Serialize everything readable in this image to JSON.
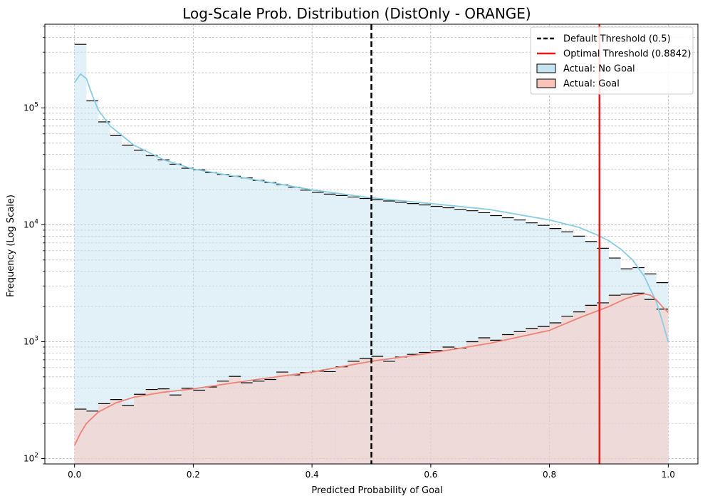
{
  "chart_data": {
    "type": "histogram",
    "title": "Log-Scale Prob. Distribution (DistOnly - ORANGE)",
    "xlabel": "Predicted Probability of Goal",
    "ylabel": "Frequency (Log Scale)",
    "xlim": [
      -0.05,
      1.05
    ],
    "ylim": [
      90,
      520000
    ],
    "yscale": "log",
    "grid": true,
    "legend_position": "top-right",
    "x_ticks": [
      {
        "value": 0.0,
        "label": "0.0"
      },
      {
        "value": 0.2,
        "label": "0.2"
      },
      {
        "value": 0.4,
        "label": "0.4"
      },
      {
        "value": 0.6,
        "label": "0.6"
      },
      {
        "value": 0.8,
        "label": "0.8"
      },
      {
        "value": 1.0,
        "label": "1.0"
      }
    ],
    "y_ticks": [
      {
        "value": 100,
        "base": "10",
        "exp": "2"
      },
      {
        "value": 1000,
        "base": "10",
        "exp": "3"
      },
      {
        "value": 10000,
        "base": "10",
        "exp": "4"
      },
      {
        "value": 100000,
        "base": "10",
        "exp": "5"
      }
    ],
    "bins": {
      "start": 0.0,
      "width": 0.02
    },
    "series": [
      {
        "name": "Actual: No Goal",
        "fill": "#c5e4f1",
        "edge": "#000000",
        "kde_color": "#87cde4",
        "values": [
          350000,
          115000,
          76000,
          58000,
          48000,
          43500,
          39000,
          36000,
          33000,
          30500,
          29500,
          28000,
          27000,
          26000,
          25200,
          24000,
          23000,
          22000,
          21000,
          19800,
          19000,
          18300,
          17800,
          17300,
          16800,
          16400,
          16000,
          15600,
          15200,
          14800,
          14400,
          14000,
          13600,
          13200,
          12700,
          12000,
          11500,
          11000,
          10400,
          9900,
          9300,
          8700,
          8000,
          7200,
          6300,
          5200,
          4200,
          4300,
          3800,
          3200,
          1800
        ]
      },
      {
        "name": "Actual: Goal",
        "fill": "#f9c3b9",
        "edge": "#000000",
        "kde_color": "#ef8272",
        "values": [
          265,
          255,
          295,
          320,
          285,
          355,
          390,
          395,
          350,
          400,
          385,
          410,
          460,
          505,
          445,
          460,
          475,
          550,
          520,
          545,
          560,
          555,
          610,
          680,
          720,
          750,
          680,
          740,
          780,
          810,
          840,
          900,
          880,
          1000,
          1080,
          1030,
          1150,
          1220,
          1300,
          1350,
          1450,
          1650,
          1800,
          2050,
          2150,
          2500,
          2550,
          2600,
          2300,
          1900,
          1800
        ]
      }
    ],
    "kde": [
      {
        "series": "Actual: No Goal",
        "x": [
          0.0,
          0.01,
          0.02,
          0.03,
          0.04,
          0.06,
          0.08,
          0.1,
          0.15,
          0.2,
          0.3,
          0.4,
          0.5,
          0.6,
          0.7,
          0.8,
          0.85,
          0.88,
          0.9,
          0.92,
          0.94,
          0.96,
          0.97,
          0.98,
          0.99,
          1.0
        ],
        "y": [
          165000,
          195000,
          178000,
          128000,
          96000,
          70000,
          58000,
          48000,
          36000,
          30000,
          24500,
          19900,
          17000,
          15200,
          13500,
          11000,
          9500,
          8200,
          7300,
          6200,
          5000,
          3600,
          2800,
          2200,
          1500,
          1000
        ]
      },
      {
        "series": "Actual: Goal",
        "x": [
          0.0,
          0.01,
          0.02,
          0.04,
          0.07,
          0.1,
          0.15,
          0.2,
          0.3,
          0.4,
          0.5,
          0.6,
          0.7,
          0.8,
          0.85,
          0.9,
          0.93,
          0.95,
          0.96,
          0.97,
          0.98,
          0.99,
          1.0
        ],
        "y": [
          130,
          165,
          200,
          250,
          300,
          335,
          370,
          395,
          470,
          550,
          680,
          800,
          970,
          1250,
          1600,
          2000,
          2350,
          2520,
          2570,
          2500,
          2280,
          2000,
          1780
        ]
      }
    ],
    "thresholds": [
      {
        "name": "Default Threshold (0.5)",
        "value": 0.5,
        "color": "#000000",
        "style": "dashed"
      },
      {
        "name": "Optimal Threshold (0.8842)",
        "value": 0.8842,
        "color": "#e81b1b",
        "style": "solid"
      }
    ],
    "legend": [
      {
        "label": "Default Threshold (0.5)",
        "kind": "line-dashed",
        "color": "#000000"
      },
      {
        "label": "Optimal Threshold (0.8842)",
        "kind": "line-solid",
        "color": "#e81b1b"
      },
      {
        "label": "Actual: No Goal",
        "kind": "patch",
        "color": "#c5e4f1"
      },
      {
        "label": "Actual: Goal",
        "kind": "patch",
        "color": "#f9c3b9"
      }
    ]
  }
}
